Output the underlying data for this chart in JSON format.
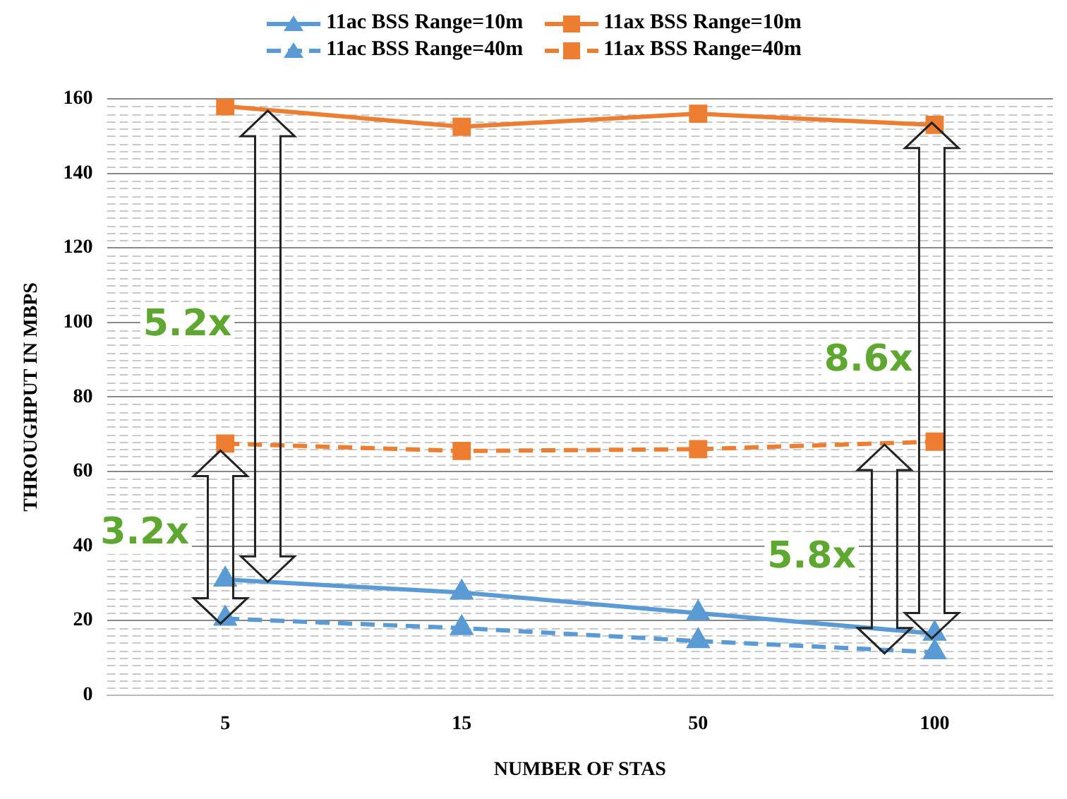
{
  "chart_data": {
    "type": "line",
    "xlabel": "NUMBER OF STAS",
    "ylabel": "THROUGHPUT IN MBPS",
    "categories": [
      "5",
      "15",
      "50",
      "100"
    ],
    "series": [
      {
        "name": "11ac BSS Range=10m",
        "color": "#5b9bd5",
        "marker": "triangle",
        "line_style": "solid",
        "values": [
          31,
          27.5,
          22,
          16.5
        ]
      },
      {
        "name": "11ax BSS Range=10m",
        "color": "#ed7d31",
        "marker": "square",
        "line_style": "solid",
        "values": [
          158,
          152.5,
          156,
          153
        ]
      },
      {
        "name": "11ac BSS Range=40m",
        "color": "#5b9bd5",
        "marker": "triangle",
        "line_style": "dashed",
        "values": [
          20.5,
          18,
          14.5,
          11.5
        ]
      },
      {
        "name": "11ax BSS Range=40m",
        "color": "#ed7d31",
        "marker": "square",
        "line_style": "dashed",
        "values": [
          67.5,
          65.5,
          66,
          68
        ]
      }
    ],
    "ylim": [
      0,
      160
    ],
    "yticks": [
      0,
      20,
      40,
      60,
      80,
      100,
      120,
      140,
      160
    ],
    "grid": "y",
    "legend": "top",
    "annotations": [
      "3.2x",
      "5.2x",
      "5.8x",
      "8.6x"
    ]
  }
}
